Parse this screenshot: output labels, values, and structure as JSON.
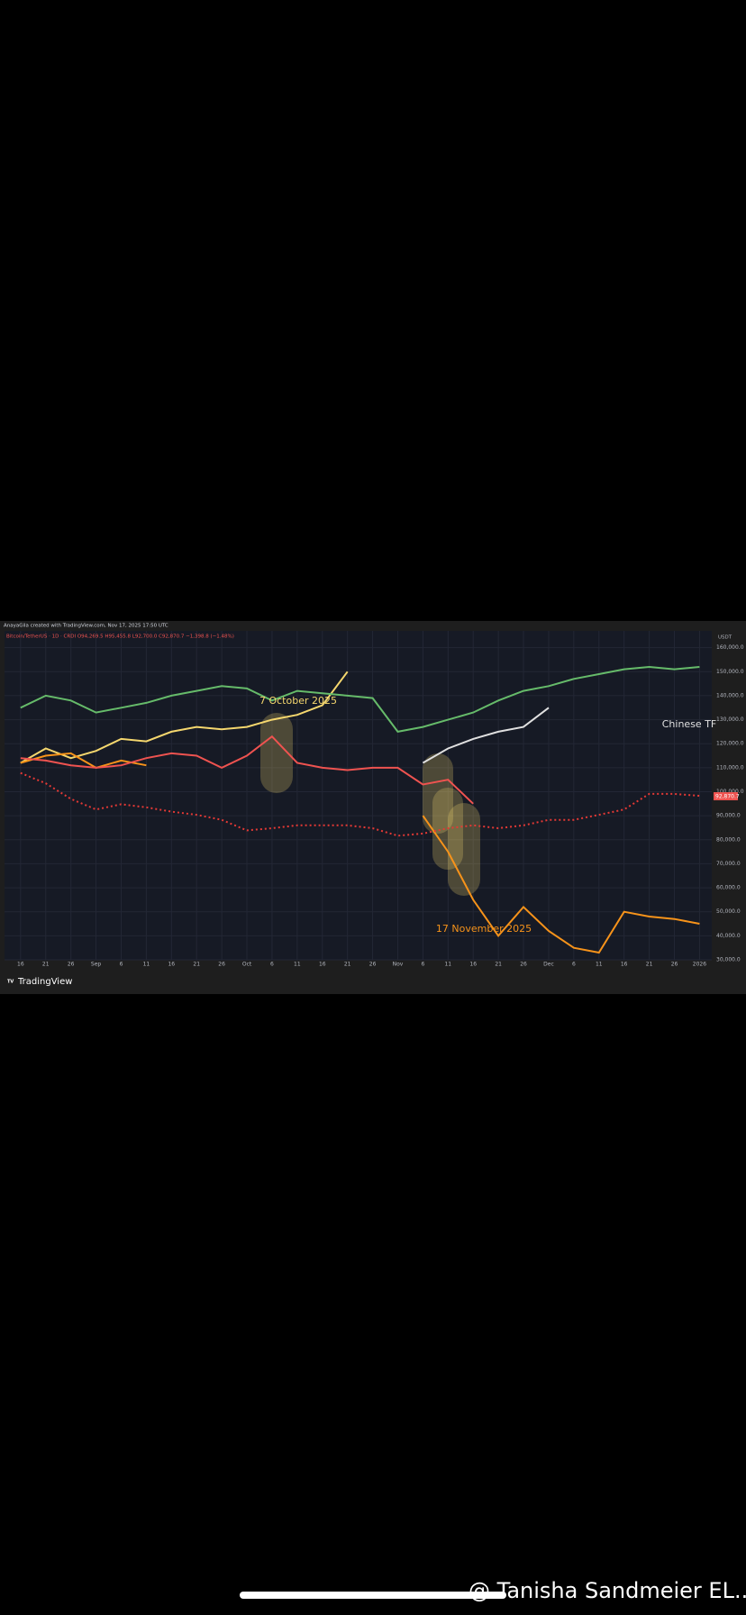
{
  "chart_data": {
    "type": "line",
    "header": "AnayaGila created with TradingView.com, Nov 17, 2025 17:50 UTC",
    "symbol_line": "Bitcoin/TetherUS · 1D · CRDI O94,269.5 H95,455.8 L92,700.0 C92,870.7 −1,398.8 (−1.48%)",
    "currency": "USDT",
    "last_price_label": "92,870.7",
    "annotations": [
      "7 October 2025",
      "17 November 2025",
      "Chinese TF"
    ],
    "brand": "TradingView",
    "categories": [
      "16",
      "21",
      "26",
      "Sep",
      "6",
      "11",
      "16",
      "21",
      "26",
      "Oct",
      "6",
      "11",
      "16",
      "21",
      "26",
      "Nov",
      "6",
      "11",
      "16",
      "21",
      "26",
      "Dec",
      "6",
      "11",
      "16",
      "21",
      "26",
      "2026"
    ],
    "ylim": [
      30000,
      167000
    ],
    "yticks": [
      {
        "value": 30000,
        "label": "30,000.0"
      },
      {
        "value": 40000,
        "label": "40,000.0"
      },
      {
        "value": 50000,
        "label": "50,000.0"
      },
      {
        "value": 60000,
        "label": "60,000.0"
      },
      {
        "value": 70000,
        "label": "70,000.0"
      },
      {
        "value": 80000,
        "label": "80,000.0"
      },
      {
        "value": 90000,
        "label": "90,000.0"
      },
      {
        "value": 100000,
        "label": "100,000.0"
      },
      {
        "value": 110000,
        "label": "110,000.0"
      },
      {
        "value": 120000,
        "label": "120,000.0"
      },
      {
        "value": 130000,
        "label": "130,000.0"
      },
      {
        "value": 140000,
        "label": "140,000.0"
      },
      {
        "value": 150000,
        "label": "150,000.0"
      },
      {
        "value": 160000,
        "label": "160,000.0"
      }
    ],
    "grid": true,
    "series": [
      {
        "color": "#f5d76e",
        "values": [
          112000,
          118000,
          114000,
          117000,
          122000,
          121000,
          125000,
          127000,
          126000,
          127000,
          130000,
          132000,
          136000,
          150000,
          null,
          null,
          null,
          null,
          null,
          null,
          null,
          null,
          null,
          null,
          null,
          null,
          null,
          null
        ]
      },
      {
        "color": "#66bb6a",
        "values": [
          135000,
          140000,
          138000,
          133000,
          135000,
          137000,
          140000,
          142000,
          144000,
          143000,
          138000,
          142000,
          141000,
          140000,
          139000,
          125000,
          127000,
          130000,
          133000,
          138000,
          142000,
          144000,
          147000,
          149000,
          151000,
          152000,
          151000,
          152000
        ]
      },
      {
        "color": "#f7931a",
        "values": [
          112000,
          115000,
          116000,
          110000,
          113000,
          111000,
          null,
          null,
          null,
          null,
          null,
          null,
          null,
          null,
          null,
          null,
          90000,
          75000,
          55000,
          40000,
          52000,
          42000,
          35000,
          33000,
          50000,
          48000,
          47000,
          45000
        ]
      },
      {
        "color": "#e0e0e0",
        "values": [
          null,
          null,
          null,
          null,
          null,
          null,
          null,
          null,
          null,
          null,
          null,
          null,
          null,
          null,
          null,
          null,
          112000,
          118000,
          122000,
          125000,
          127000,
          135000,
          null,
          null,
          null,
          null,
          null,
          null
        ]
      },
      {
        "color": "#e53935",
        "dashed": true,
        "values": [
          107800,
          103500,
          97000,
          92600,
          94800,
          93500,
          91700,
          90400,
          88300,
          83900,
          84800,
          86000,
          86000,
          86000,
          84800,
          81700,
          82600,
          84800,
          86000,
          84800,
          86000,
          88300,
          88300,
          90400,
          92600,
          99100,
          99100,
          98300
        ]
      },
      {
        "color": "#ef5350",
        "values": [
          114000,
          113000,
          111000,
          110000,
          111000,
          114000,
          116000,
          115000,
          110000,
          115000,
          123000,
          112000,
          110000,
          109000,
          110000,
          110000,
          103000,
          105000,
          95000,
          null,
          null,
          null,
          null,
          null,
          null,
          null,
          null,
          null
        ]
      }
    ]
  },
  "caption": "@ Tanisha Sandmeier EL..."
}
